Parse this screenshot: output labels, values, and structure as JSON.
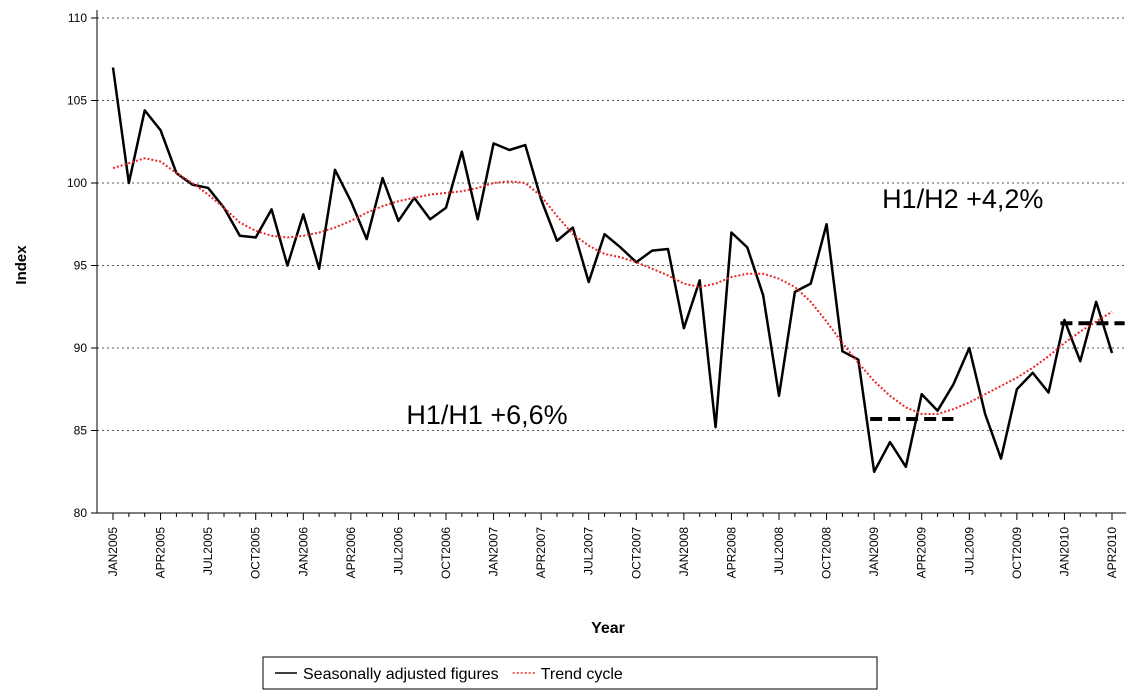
{
  "chart_data": {
    "type": "line",
    "categories": [
      "JAN2005",
      null,
      null,
      "APR2005",
      null,
      null,
      "JUL2005",
      null,
      null,
      "OCT2005",
      null,
      null,
      "JAN2006",
      null,
      null,
      "APR2006",
      null,
      null,
      "JUL2006",
      null,
      null,
      "OCT2006",
      null,
      null,
      "JAN2007",
      null,
      null,
      "APR2007",
      null,
      null,
      "JUL2007",
      null,
      null,
      "OCT2007",
      null,
      null,
      "JAN2008",
      null,
      null,
      "APR2008",
      null,
      null,
      "JUL2008",
      null,
      null,
      "OCT2008",
      null,
      null,
      "JAN2009",
      null,
      null,
      "APR2009",
      null,
      null,
      "JUL2009",
      null,
      null,
      "OCT2009",
      null,
      null,
      "JAN2010",
      null,
      null,
      "APR2010"
    ],
    "series": [
      {
        "name": "Seasonally adjusted figures",
        "color": "#000000",
        "style": "solid",
        "values": [
          107.0,
          100.0,
          104.4,
          103.2,
          100.6,
          99.9,
          99.7,
          98.5,
          96.8,
          96.7,
          98.4,
          95.0,
          98.1,
          94.8,
          100.8,
          98.9,
          96.6,
          100.3,
          97.7,
          99.1,
          97.8,
          98.5,
          101.9,
          97.8,
          102.4,
          102.0,
          102.3,
          99.0,
          96.5,
          97.3,
          94.0,
          96.9,
          96.1,
          95.2,
          95.9,
          96.0,
          91.2,
          94.1,
          85.2,
          97.0,
          96.1,
          93.2,
          87.1,
          93.4,
          93.9,
          97.5,
          89.8,
          89.3,
          82.5,
          84.3,
          82.8,
          87.2,
          86.2,
          87.8,
          90.0,
          86.0,
          83.3,
          87.5,
          88.5,
          87.3,
          91.7,
          89.2,
          92.8,
          89.7
        ]
      },
      {
        "name": "Trend cycle",
        "color": "#e8262a",
        "style": "dotted",
        "values": [
          100.9,
          101.2,
          101.5,
          101.3,
          100.6,
          100.0,
          99.3,
          98.5,
          97.6,
          97.1,
          96.8,
          96.7,
          96.8,
          97.0,
          97.3,
          97.7,
          98.2,
          98.6,
          98.9,
          99.1,
          99.3,
          99.4,
          99.5,
          99.7,
          100.0,
          100.1,
          100.0,
          99.2,
          98.0,
          96.9,
          96.2,
          95.7,
          95.5,
          95.2,
          94.8,
          94.4,
          93.9,
          93.7,
          93.9,
          94.3,
          94.5,
          94.5,
          94.2,
          93.7,
          92.8,
          91.6,
          90.3,
          89.1,
          88.0,
          87.1,
          86.4,
          86.0,
          86.0,
          86.3,
          86.7,
          87.2,
          87.7,
          88.2,
          88.8,
          89.5,
          90.3,
          91.0,
          91.6,
          92.2
        ]
      }
    ],
    "reference_lines": [
      {
        "x": [
          48,
          53
        ],
        "value": 85.7
      },
      {
        "x": [
          60,
          63.8
        ],
        "value": 91.5
      }
    ],
    "annotations": [
      {
        "text": "H1/H2 +4,2%",
        "x": 48.5,
        "y": 98.5
      },
      {
        "text": "H1/H1 +6,6%",
        "x": 18.5,
        "y": 85.4
      }
    ],
    "xlabel": "Year",
    "ylabel": "Index",
    "ylim": [
      80,
      110
    ],
    "yticks": [
      80,
      85,
      90,
      95,
      100,
      105,
      110
    ],
    "grid": true,
    "legend": "bottom"
  }
}
